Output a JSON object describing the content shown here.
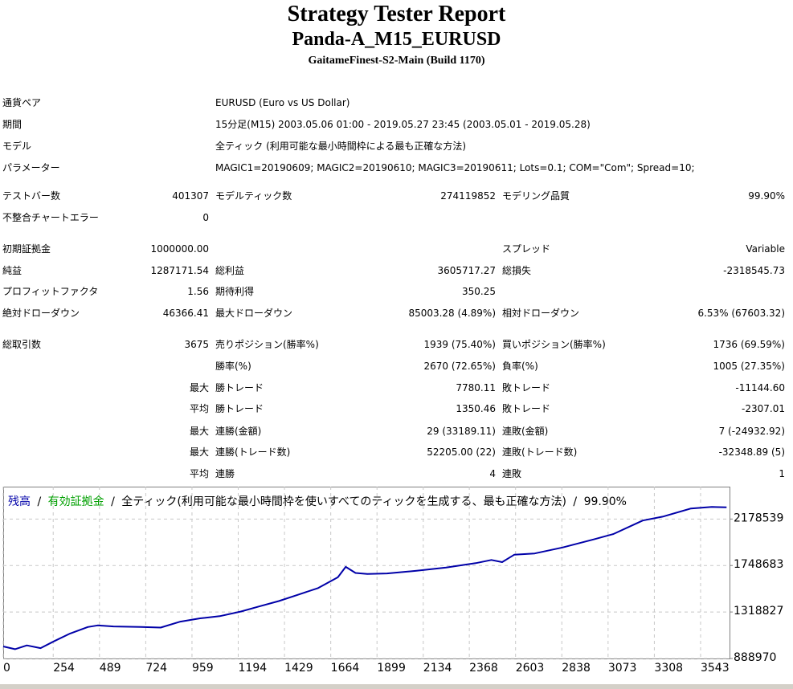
{
  "header": {
    "title": "Strategy Tester Report",
    "subtitle": "Panda-A_M15_EURUSD",
    "server": "GaitameFinest-S2-Main (Build 1170)"
  },
  "table": {
    "rows": [
      {
        "l1": "通貨ペア",
        "text": "EURUSD (Euro vs US Dollar)"
      },
      {
        "l1": "期間",
        "text": "15分足(M15) 2003.05.06 01:00 - 2019.05.27 23:45 (2003.05.01 - 2019.05.28)"
      },
      {
        "l1": "モデル",
        "text": "全ティック (利用可能な最小時間枠による最も正確な方法)"
      },
      {
        "l1": "パラメーター",
        "text": "MAGIC1=20190609; MAGIC2=20190610; MAGIC3=20190611; Lots=0.1; COM=\"Com\"; Spread=10;"
      },
      {
        "l1": "テストバー数",
        "v1": "401307",
        "l2": "モデルティック数",
        "v2": "274119852",
        "l3": "モデリング品質",
        "v3": "99.90%"
      },
      {
        "l1": "不整合チャートエラー",
        "v1": "0"
      },
      {
        "l1": "初期証拠金",
        "v1": "1000000.00",
        "l3": "スプレッド",
        "v3": "Variable"
      },
      {
        "l1": "純益",
        "v1": "1287171.54",
        "l2": "総利益",
        "v2": "3605717.27",
        "l3": "総損失",
        "v3": "-2318545.73"
      },
      {
        "l1": "プロフィットファクタ",
        "v1": "1.56",
        "l2": "期待利得",
        "v2": "350.25"
      },
      {
        "l1": "絶対ドローダウン",
        "v1": "46366.41",
        "l2": "最大ドローダウン",
        "v2": "85003.28 (4.89%)",
        "l3": "相対ドローダウン",
        "v3": "6.53% (67603.32)"
      },
      {
        "l1": "総取引数",
        "v1": "3675",
        "l2": "売りポジション(勝率%)",
        "v2": "1939 (75.40%)",
        "l3": "買いポジション(勝率%)",
        "v3": "1736 (69.59%)"
      },
      {
        "l2": "勝率(%)",
        "v2": "2670 (72.65%)",
        "l3": "負率(%)",
        "v3": "1005 (27.35%)"
      },
      {
        "v1": "最大",
        "l2": "勝トレード",
        "v2": "7780.11",
        "l3": "敗トレード",
        "v3": "-11144.60"
      },
      {
        "v1": "平均",
        "l2": "勝トレード",
        "v2": "1350.46",
        "l3": "敗トレード",
        "v3": "-2307.01"
      },
      {
        "v1": "最大",
        "l2": "連勝(金額)",
        "v2": "29 (33189.11)",
        "l3": "連敗(金額)",
        "v3": "7 (-24932.92)"
      },
      {
        "v1": "最大",
        "l2": "連勝(トレード数)",
        "v2": "52205.00 (22)",
        "l3": "連敗(トレード数)",
        "v3": "-32348.89 (5)"
      },
      {
        "v1": "平均",
        "l2": "連勝",
        "v2": "4",
        "l3": "連敗",
        "v3": "1"
      }
    ]
  },
  "chart_data": {
    "type": "line",
    "separator": "/",
    "equity_label": {
      "name": "有効証拠金",
      "color": "#00a000"
    },
    "model_label": "全ティック(利用可能な最小時間枠を使いすべてのティックを生成する、最も正確な方法)",
    "quality_label": "99.90%",
    "x": [
      0,
      60,
      120,
      190,
      260,
      340,
      430,
      480,
      560,
      700,
      800,
      900,
      1000,
      1100,
      1208,
      1300,
      1400,
      1500,
      1600,
      1700,
      1740,
      1790,
      1850,
      1950,
      2100,
      2250,
      2400,
      2480,
      2535,
      2596,
      2700,
      2841,
      3000,
      3100,
      3249,
      3350,
      3494,
      3600,
      3675
    ],
    "series": [
      {
        "name": "残高",
        "color": "#0000a8",
        "values": [
          1000000,
          975000,
          1010000,
          985000,
          1050000,
          1120000,
          1180000,
          1195000,
          1185000,
          1180000,
          1175000,
          1230000,
          1260000,
          1280000,
          1323000,
          1370000,
          1420000,
          1480000,
          1540000,
          1640000,
          1736000,
          1680000,
          1670000,
          1675000,
          1700000,
          1730000,
          1770000,
          1800000,
          1780000,
          1848000,
          1860000,
          1915000,
          1990000,
          2040000,
          2165000,
          2200000,
          2276000,
          2290000,
          2287171
        ]
      }
    ],
    "xlim": [
      0,
      3690
    ],
    "ylim": [
      888970,
      2478000
    ],
    "xticks": [
      0,
      254,
      489,
      724,
      959,
      1194,
      1429,
      1664,
      1899,
      2134,
      2368,
      2603,
      2838,
      3073,
      3308,
      3543
    ],
    "yticks": [
      888970,
      1318827,
      1748683,
      2178539
    ],
    "grid": true
  }
}
